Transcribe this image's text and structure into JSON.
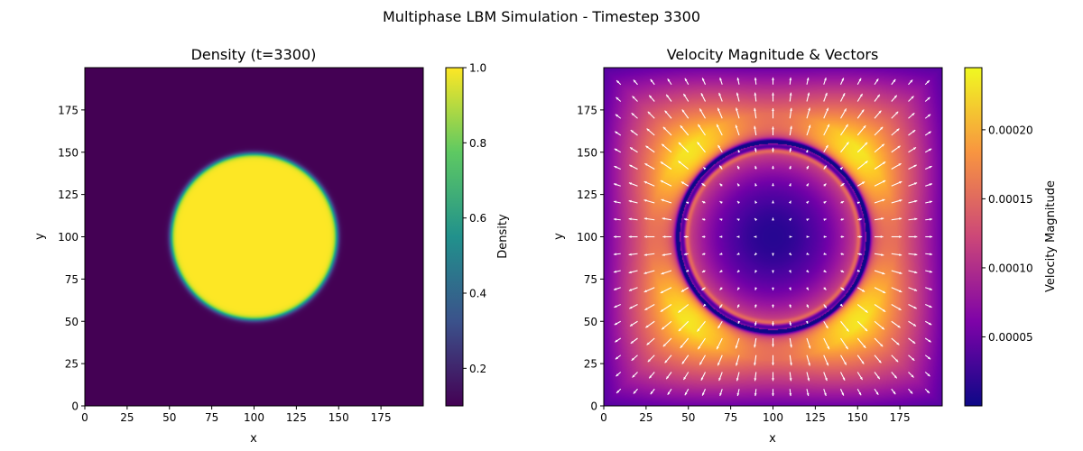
{
  "suptitle": "Multiphase LBM Simulation - Timestep 3300",
  "chart_data": [
    {
      "type": "heatmap",
      "title": "Density (t=3300)",
      "xlabel": "x",
      "ylabel": "y",
      "xlim": [
        0,
        200
      ],
      "ylim": [
        0,
        200
      ],
      "xticks": [
        0,
        25,
        50,
        75,
        100,
        125,
        150,
        175
      ],
      "yticks": [
        0,
        25,
        50,
        75,
        100,
        125,
        150,
        175
      ],
      "colormap": "viridis",
      "colorbar": {
        "label": "Density",
        "range": [
          0.1,
          1.0
        ],
        "ticks": [
          0.2,
          0.4,
          0.6,
          0.8,
          1.0
        ],
        "tick_labels": [
          "0.2",
          "0.4",
          "0.6",
          "0.8",
          "1.0"
        ]
      },
      "field": {
        "shape": "circular droplet",
        "center": [
          100,
          100
        ],
        "radius": 49,
        "inside_value": 1.0,
        "outside_value": 0.1,
        "interface_width": 3
      }
    },
    {
      "type": "heatmap",
      "title": "Velocity Magnitude & Vectors",
      "xlabel": "x",
      "ylabel": "y",
      "xlim": [
        0,
        200
      ],
      "ylim": [
        0,
        200
      ],
      "xticks": [
        0,
        25,
        50,
        75,
        100,
        125,
        150,
        175
      ],
      "yticks": [
        0,
        25,
        50,
        75,
        100,
        125,
        150,
        175
      ],
      "colormap": "plasma",
      "colorbar": {
        "label": "Velocity Magnitude",
        "range": [
          0.0,
          0.000245
        ],
        "ticks": [
          5e-05,
          0.0001,
          0.00015,
          0.0002
        ],
        "tick_labels": [
          "0.00005",
          "0.00010",
          "0.00015",
          "0.00020"
        ]
      },
      "field": {
        "shape": "radial flow around droplet",
        "center": [
          100,
          100
        ],
        "interface_radius": 55,
        "inner_ring_radius": 51,
        "max_value": 0.000245,
        "peak_location": "diagonals outside the droplet"
      },
      "quiver": {
        "color": "#ffffff",
        "grid_spacing": 10,
        "direction": "radial, outward outside the droplet"
      }
    }
  ]
}
